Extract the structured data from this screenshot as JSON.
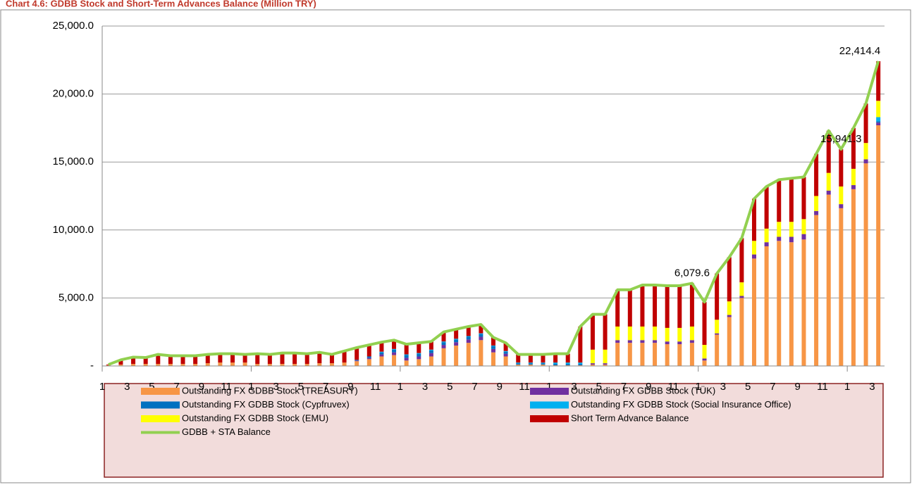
{
  "chart_data": {
    "type": "bar",
    "stacked": true,
    "title": "Chart 4.6: GDBB Stock and Short-Term Advances Balance (Million TRY)",
    "categories": [
      "1",
      null,
      "3",
      null,
      "5",
      null,
      "7",
      null,
      "9",
      null,
      "11",
      null,
      "1",
      null,
      "3",
      null,
      "5",
      null,
      "7",
      null,
      "9",
      null,
      "11",
      null,
      "1",
      null,
      "3",
      null,
      "5",
      null,
      "7",
      null,
      "9",
      null,
      "11",
      null,
      "1",
      null,
      "3",
      null,
      "5",
      null,
      "7",
      null,
      "9",
      null,
      "11",
      null,
      "1",
      null,
      "3",
      null,
      "5",
      null,
      "7",
      null,
      "9",
      null,
      "11",
      null,
      "1",
      null,
      "3"
    ],
    "ylim": [
      0,
      25000
    ],
    "yticks": [
      {
        "value": 0,
        "label": "-"
      },
      {
        "value": 5000,
        "label": "5,000.0"
      },
      {
        "value": 10000,
        "label": "10,000.0"
      },
      {
        "value": 15000,
        "label": "15,000.0"
      },
      {
        "value": 20000,
        "label": "20,000.0"
      },
      {
        "value": 25000,
        "label": "25,000.0"
      }
    ],
    "grid": true,
    "legend": "bottom",
    "series": [
      {
        "name": "Outstanding FX GDBB Stock (TREASURY)",
        "type": "bar",
        "color": "#f79646",
        "values": [
          50,
          100,
          150,
          150,
          150,
          150,
          150,
          150,
          200,
          250,
          250,
          250,
          150,
          150,
          150,
          150,
          150,
          200,
          200,
          250,
          350,
          500,
          700,
          800,
          400,
          500,
          700,
          1300,
          1500,
          1700,
          1900,
          1000,
          700,
          100,
          100,
          100,
          50,
          50,
          50,
          100,
          100,
          1700,
          1700,
          1700,
          1700,
          1600,
          1600,
          1700,
          400,
          2300,
          3600,
          5000,
          7900,
          8800,
          9200,
          9100,
          9300,
          11100,
          12600,
          11600,
          13000,
          14900,
          17700
        ]
      },
      {
        "name": "Outstanding FX GDBB Stock (TÜK)",
        "type": "bar",
        "color": "#7030a0",
        "values": [
          0,
          0,
          0,
          0,
          0,
          0,
          0,
          0,
          0,
          0,
          0,
          0,
          0,
          0,
          0,
          0,
          0,
          0,
          0,
          0,
          50,
          100,
          150,
          200,
          200,
          200,
          250,
          250,
          250,
          250,
          250,
          250,
          200,
          0,
          0,
          0,
          0,
          0,
          0,
          100,
          100,
          200,
          200,
          200,
          200,
          200,
          200,
          200,
          150,
          100,
          150,
          150,
          300,
          300,
          300,
          400,
          400,
          300,
          300,
          300,
          300,
          300,
          200
        ]
      },
      {
        "name": "Outstanding FX GDBB Stock (Cypfruvex)",
        "type": "bar",
        "color": "#0070c0",
        "values": [
          0,
          0,
          0,
          0,
          0,
          0,
          0,
          0,
          0,
          0,
          0,
          0,
          0,
          0,
          0,
          0,
          0,
          0,
          0,
          0,
          50,
          100,
          150,
          200,
          200,
          200,
          200,
          200,
          200,
          200,
          200,
          200,
          150,
          100,
          100,
          100,
          100,
          100,
          100,
          0,
          0,
          0,
          0,
          0,
          0,
          0,
          0,
          0,
          0,
          0,
          0,
          0,
          0,
          0,
          0,
          0,
          0,
          0,
          0,
          0,
          0,
          0,
          100
        ]
      },
      {
        "name": "Outstanding FX GDBB Stock (Social Insurance Office)",
        "type": "bar",
        "color": "#00b0f0",
        "values": [
          0,
          0,
          0,
          0,
          0,
          0,
          0,
          0,
          0,
          0,
          0,
          0,
          0,
          0,
          0,
          0,
          0,
          0,
          0,
          0,
          0,
          0,
          50,
          50,
          50,
          50,
          50,
          50,
          50,
          50,
          50,
          50,
          50,
          50,
          50,
          50,
          100,
          100,
          100,
          0,
          0,
          0,
          0,
          0,
          0,
          0,
          0,
          0,
          0,
          0,
          0,
          0,
          0,
          0,
          0,
          0,
          0,
          0,
          0,
          0,
          0,
          0,
          300
        ]
      },
      {
        "name": "Outstanding FX GDBB Stock (EMU)",
        "type": "bar",
        "color": "#ffff00",
        "values": [
          0,
          0,
          0,
          0,
          0,
          0,
          0,
          0,
          0,
          0,
          0,
          0,
          0,
          0,
          0,
          0,
          0,
          0,
          0,
          0,
          0,
          0,
          0,
          0,
          0,
          0,
          0,
          0,
          0,
          0,
          0,
          0,
          0,
          0,
          0,
          0,
          0,
          0,
          0,
          1000,
          1000,
          1000,
          1000,
          1000,
          1000,
          1000,
          1000,
          1000,
          1000,
          1000,
          1000,
          1000,
          1000,
          1000,
          1100,
          1100,
          1100,
          1100,
          1300,
          1300,
          1200,
          1200,
          1200
        ]
      },
      {
        "name": "Short Term Advance Balance",
        "type": "bar",
        "color": "#c00000",
        "values": [
          50,
          350,
          500,
          470,
          700,
          600,
          600,
          600,
          650,
          650,
          650,
          600,
          750,
          700,
          800,
          800,
          750,
          800,
          650,
          850,
          900,
          850,
          700,
          650,
          750,
          750,
          600,
          700,
          700,
          700,
          650,
          600,
          600,
          600,
          600,
          600,
          650,
          650,
          2650,
          2600,
          2600,
          2700,
          2700,
          3050,
          3050,
          3100,
          3100,
          3179.6,
          3150,
          3400,
          3250,
          3250,
          3100,
          3100,
          3100,
          3200,
          3100,
          3100,
          3100,
          2741.3,
          3000,
          2900,
          2914.4
        ]
      },
      {
        "name": "GDBB + STA Balance",
        "type": "line",
        "color": "#92d050",
        "values": [
          100,
          450,
          650,
          620,
          850,
          750,
          750,
          750,
          850,
          900,
          900,
          850,
          900,
          850,
          950,
          950,
          900,
          1000,
          850,
          1100,
          1350,
          1550,
          1750,
          1900,
          1600,
          1700,
          1800,
          2500,
          2700,
          2900,
          3050,
          2100,
          1700,
          850,
          850,
          850,
          900,
          900,
          2900,
          3800,
          3800,
          5600,
          5600,
          5950,
          5950,
          5900,
          5900,
          6079.6,
          4700,
          6800,
          8000,
          9400,
          12300,
          13200,
          13700,
          13800,
          13900,
          15600,
          17300,
          15941.3,
          17500,
          19300,
          22414.4
        ],
        "value_labels": [
          null,
          null,
          null,
          null,
          null,
          null,
          null,
          null,
          null,
          null,
          null,
          null,
          null,
          null,
          null,
          null,
          null,
          null,
          null,
          null,
          null,
          null,
          null,
          null,
          null,
          null,
          null,
          null,
          null,
          null,
          null,
          null,
          null,
          null,
          null,
          null,
          null,
          null,
          null,
          null,
          null,
          null,
          null,
          null,
          null,
          null,
          null,
          "6,079.6",
          null,
          null,
          null,
          null,
          null,
          null,
          null,
          null,
          null,
          null,
          null,
          "15,941.3",
          null,
          null,
          "22,414.4"
        ]
      }
    ]
  }
}
